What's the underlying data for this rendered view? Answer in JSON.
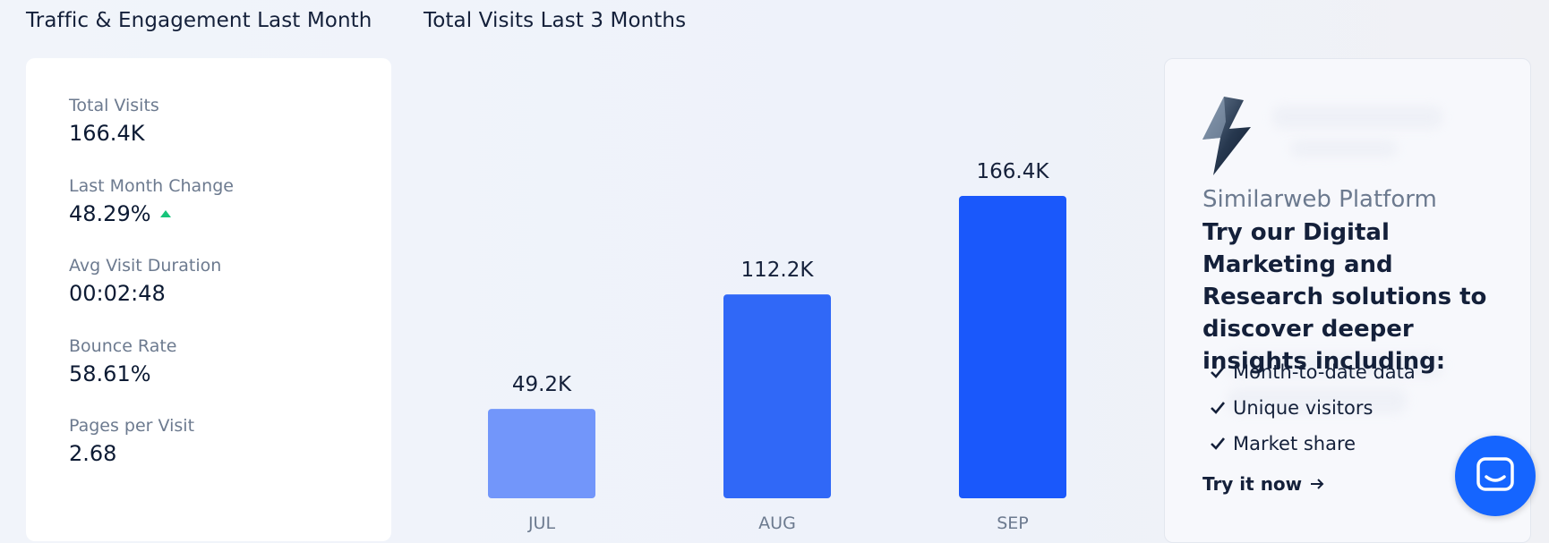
{
  "sections": {
    "traffic_title": "Traffic & Engagement Last Month",
    "visits_title": "Total Visits Last 3 Months"
  },
  "metrics": [
    {
      "label": "Total Visits",
      "value": "166.4K"
    },
    {
      "label": "Last Month Change",
      "value": "48.29%",
      "trend": "up"
    },
    {
      "label": "Avg Visit Duration",
      "value": "00:02:48"
    },
    {
      "label": "Bounce Rate",
      "value": "58.61%"
    },
    {
      "label": "Pages per Visit",
      "value": "2.68"
    }
  ],
  "colors": {
    "bar_light": "#7296fa",
    "bar_mid": "#3068f7",
    "bar_dark": "#1a58fb",
    "trend_up": "#17c47a",
    "chat": "#1565ff"
  },
  "chart_data": {
    "type": "bar",
    "categories": [
      "JUL",
      "AUG",
      "SEP"
    ],
    "values": [
      49.2,
      112.2,
      166.4
    ],
    "value_labels": [
      "49.2K",
      "112.2K",
      "166.4K"
    ],
    "title": "",
    "xlabel": "",
    "ylabel": "",
    "ylim": [
      0,
      166.4
    ],
    "grid": false,
    "legend": "none"
  },
  "promo": {
    "subtitle": "Similarweb Platform",
    "heading": "Try our Digital Marketing and Research solutions to discover deeper insights including:",
    "items": [
      "Month-to-date data",
      "Unique visitors",
      "Market share"
    ],
    "cta": "Try it now",
    "logo_icon": "lightning-bolt-icon"
  },
  "chat": {
    "icon": "chat-icon"
  }
}
